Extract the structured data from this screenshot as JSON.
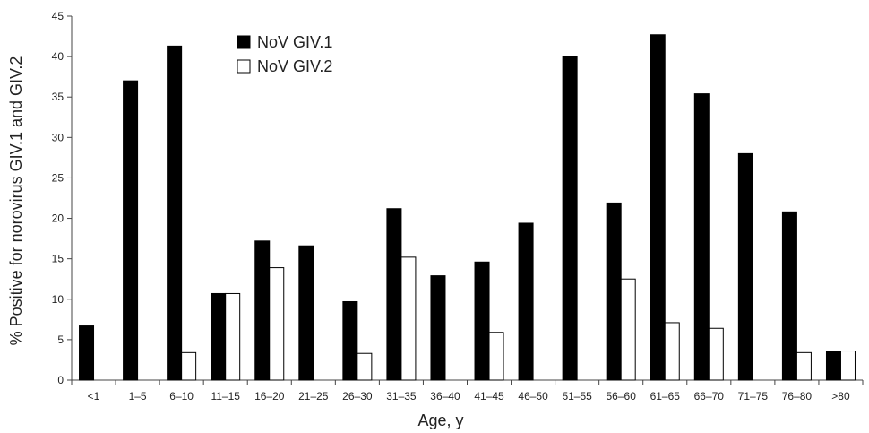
{
  "chart_data": {
    "type": "bar",
    "categories": [
      "<1",
      "1–5",
      "6–10",
      "11–15",
      "16–20",
      "21–25",
      "26–30",
      "31–35",
      "36–40",
      "41–45",
      "46–50",
      "51–55",
      "56–60",
      "61–65",
      "66–70",
      "71–75",
      "76–80",
      ">80"
    ],
    "series": [
      {
        "name": "NoV GIV.1",
        "color": "#000000",
        "values": [
          6.7,
          37.0,
          41.3,
          10.7,
          17.2,
          16.6,
          9.7,
          21.2,
          12.9,
          14.6,
          19.4,
          40.0,
          21.9,
          42.7,
          35.4,
          28.0,
          20.8,
          3.6
        ]
      },
      {
        "name": "NoV GIV.2",
        "color": "#ffffff",
        "values": [
          0,
          0,
          3.4,
          10.7,
          13.9,
          0,
          3.3,
          15.2,
          0,
          5.9,
          0,
          0,
          12.5,
          7.1,
          6.4,
          0,
          3.4,
          3.6
        ]
      }
    ],
    "xlabel": "Age, y",
    "ylabel": "% Positive for norovirus GIV.1 and GIV.2",
    "ylim": [
      0,
      45
    ],
    "yticks": [
      0,
      5,
      10,
      15,
      20,
      25,
      30,
      35,
      40,
      45
    ],
    "grid": false,
    "legend_position": "top-left"
  }
}
